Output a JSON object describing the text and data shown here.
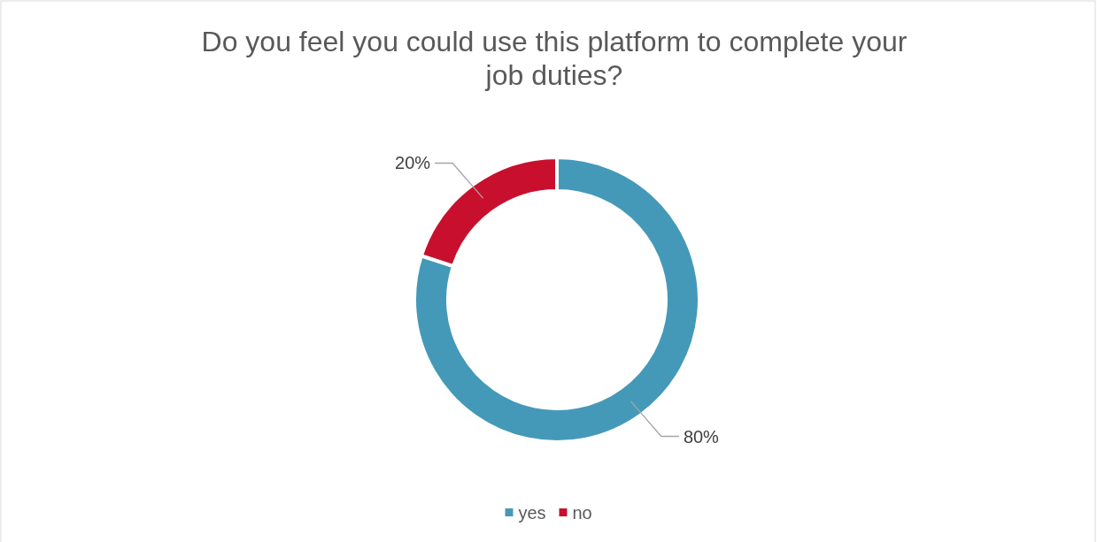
{
  "chart_data": {
    "type": "donut",
    "title": "Do you feel you could use this platform to complete your job duties?",
    "categories": [
      "yes",
      "no"
    ],
    "values": [
      80,
      20
    ],
    "colors": [
      "#4599b8",
      "#c8102e"
    ],
    "value_labels": [
      "80%",
      "20%"
    ],
    "legend": "bottom"
  }
}
